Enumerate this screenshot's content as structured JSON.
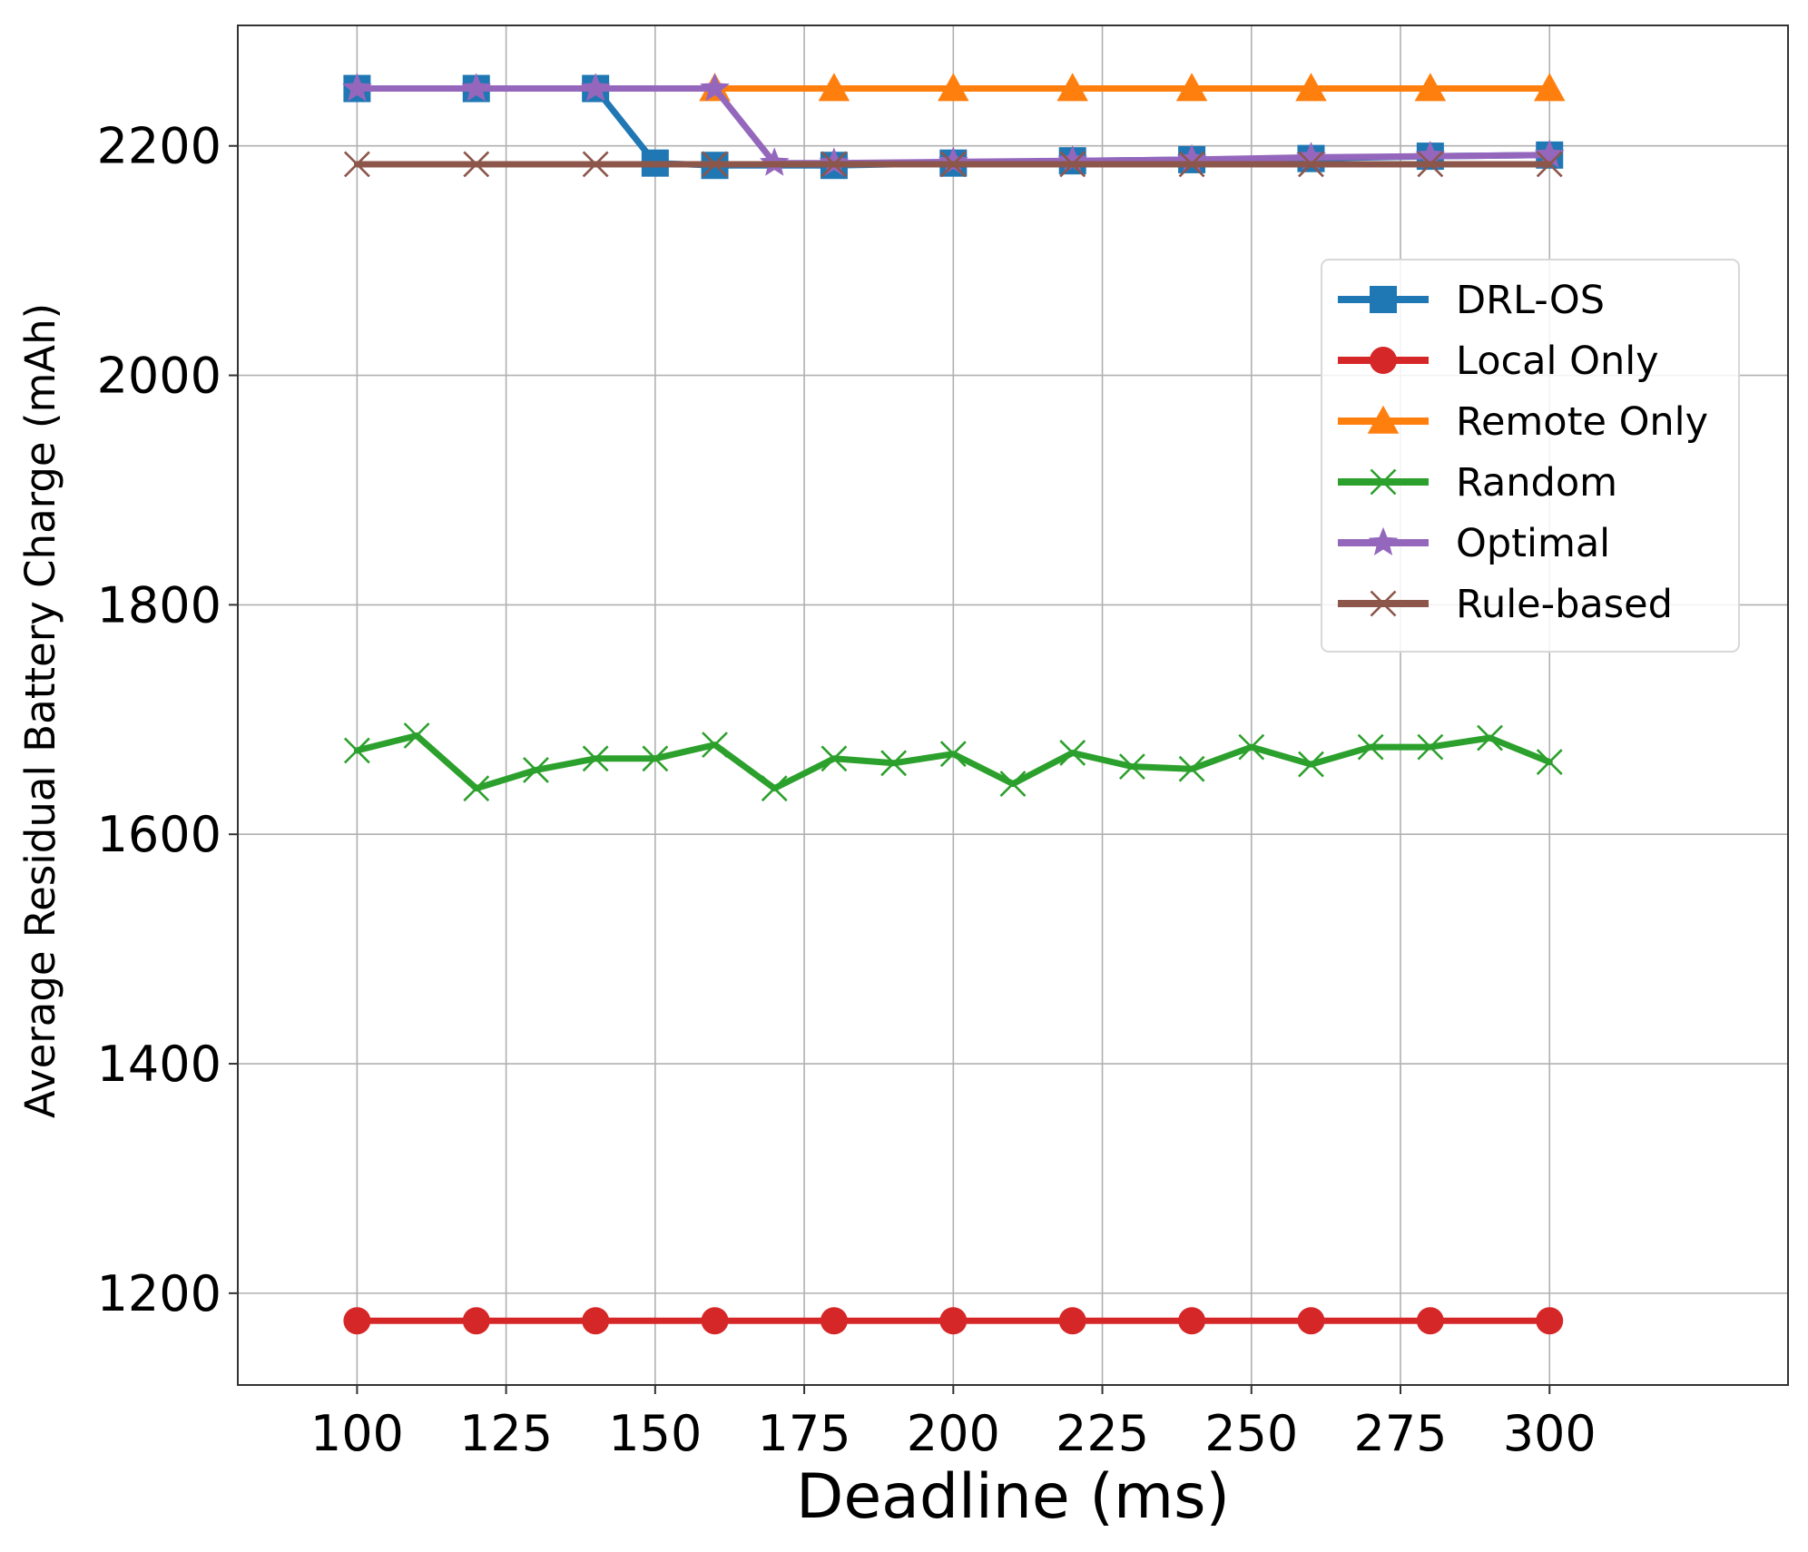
{
  "chart_data": {
    "type": "line",
    "xlabel": "Deadline (ms)",
    "ylabel": "Average Residual Battery Charge (mAh)",
    "xlim": [
      80,
      340
    ],
    "ylim": [
      1120,
      2305
    ],
    "xticks": [
      100,
      125,
      150,
      175,
      200,
      225,
      250,
      275,
      300
    ],
    "yticks": [
      1200,
      1400,
      1600,
      1800,
      2000,
      2200
    ],
    "grid": true,
    "legend_position": "upper-right",
    "series": [
      {
        "name": "DRL-OS",
        "color": "#1f77b4",
        "marker": "square",
        "x": [
          100,
          120,
          140,
          150,
          160,
          180,
          200,
          220,
          240,
          260,
          280,
          300
        ],
        "y": [
          2250,
          2250,
          2250,
          2185,
          2183,
          2183,
          2185,
          2187,
          2188,
          2189,
          2191,
          2192
        ]
      },
      {
        "name": "Local Only",
        "color": "#d62728",
        "marker": "circle",
        "x": [
          100,
          120,
          140,
          160,
          180,
          200,
          220,
          240,
          260,
          280,
          300
        ],
        "y": [
          1176,
          1176,
          1176,
          1176,
          1176,
          1176,
          1176,
          1176,
          1176,
          1176,
          1176
        ]
      },
      {
        "name": "Remote Only",
        "color": "#ff7f0e",
        "marker": "triangle",
        "x": [
          160,
          180,
          200,
          220,
          240,
          260,
          280,
          300
        ],
        "y": [
          2250,
          2250,
          2250,
          2250,
          2250,
          2250,
          2250,
          2250
        ]
      },
      {
        "name": "Random",
        "color": "#2ca02c",
        "marker": "x",
        "x": [
          100,
          110,
          120,
          130,
          140,
          150,
          160,
          170,
          180,
          190,
          200,
          210,
          220,
          230,
          240,
          250,
          260,
          270,
          280,
          290,
          300
        ],
        "y": [
          1673,
          1686,
          1640,
          1656,
          1666,
          1666,
          1678,
          1640,
          1666,
          1662,
          1670,
          1644,
          1671,
          1659,
          1657,
          1676,
          1661,
          1676,
          1676,
          1684,
          1663
        ]
      },
      {
        "name": "Optimal",
        "color": "#9467bd",
        "marker": "star",
        "x": [
          100,
          120,
          140,
          160,
          170,
          180,
          200,
          220,
          240,
          260,
          280,
          300
        ],
        "y": [
          2250,
          2250,
          2250,
          2250,
          2185,
          2185,
          2186,
          2187,
          2188,
          2190,
          2191,
          2192
        ]
      },
      {
        "name": "Rule-based",
        "color": "#8c564b",
        "marker": "x",
        "x": [
          100,
          120,
          140,
          160,
          180,
          200,
          220,
          240,
          260,
          280,
          300
        ],
        "y": [
          2184,
          2184,
          2184,
          2184,
          2184,
          2184,
          2184,
          2184,
          2184,
          2184,
          2184
        ]
      }
    ]
  }
}
